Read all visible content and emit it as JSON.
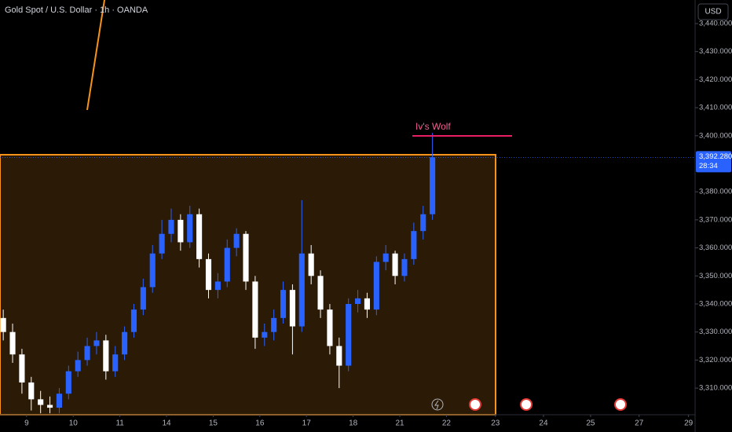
{
  "chart_data": {
    "type": "candlestick",
    "title": "Gold Spot / U.S. Dollar · 1h · OANDA",
    "currency": "USD",
    "up_color": "#2962ff",
    "down_color": "#ffffff",
    "annotation": "Iv's Wolf",
    "last_price": {
      "value": 3392.28,
      "label": "3,392.280"
    },
    "countdown": "28:34",
    "x": [
      -0.5,
      -0.3,
      -0.1,
      0.1,
      0.3,
      0.5,
      0.7,
      0.9,
      1.1,
      1.3,
      1.5,
      1.7,
      1.9,
      2.1,
      2.3,
      2.5,
      2.7,
      2.9,
      3.1,
      3.3,
      3.5,
      3.7,
      3.9,
      4.1,
      4.3,
      4.5,
      4.7,
      4.9,
      5.1,
      5.3,
      5.5,
      5.7,
      5.9,
      6.1,
      6.3,
      6.5,
      6.7,
      6.9,
      7.1,
      7.3,
      7.5,
      7.7,
      7.9,
      8.1,
      8.3,
      8.5,
      8.7
    ],
    "open": [
      3335,
      3330,
      3322,
      3312,
      3306,
      3304,
      3303,
      3308,
      3316,
      3320,
      3325,
      3327,
      3316,
      3322,
      3330,
      3338,
      3346,
      3358,
      3365,
      3370,
      3362,
      3372,
      3356,
      3345,
      3348,
      3360,
      3365,
      3348,
      3328,
      3330,
      3335,
      3345,
      3332,
      3358,
      3350,
      3338,
      3325,
      3318,
      3340,
      3342,
      3338,
      3355,
      3358,
      3350,
      3356,
      3366,
      3372
    ],
    "high": [
      3338,
      3333,
      3324,
      3314,
      3309,
      3307,
      3310,
      3318,
      3323,
      3328,
      3330,
      3329,
      3325,
      3332,
      3340,
      3349,
      3361,
      3370,
      3374,
      3372,
      3375,
      3374,
      3358,
      3351,
      3363,
      3367,
      3366,
      3350,
      3333,
      3338,
      3348,
      3347,
      3377,
      3361,
      3352,
      3340,
      3328,
      3342,
      3345,
      3344,
      3357,
      3361,
      3359,
      3358,
      3369,
      3375,
      3401
    ],
    "low": [
      3327,
      3319,
      3308,
      3302,
      3301,
      3301,
      3301,
      3306,
      3314,
      3318,
      3322,
      3313,
      3314,
      3320,
      3328,
      3336,
      3344,
      3356,
      3362,
      3359,
      3360,
      3353,
      3342,
      3342,
      3346,
      3357,
      3345,
      3324,
      3325,
      3327,
      3333,
      3322,
      3330,
      3347,
      3335,
      3322,
      3310,
      3316,
      3337,
      3335,
      3336,
      3352,
      3347,
      3348,
      3354,
      3363,
      3370
    ],
    "close": [
      3330,
      3322,
      3312,
      3306,
      3304,
      3303,
      3308,
      3316,
      3320,
      3325,
      3327,
      3316,
      3322,
      3330,
      3338,
      3346,
      3358,
      3365,
      3370,
      3362,
      3372,
      3356,
      3345,
      3348,
      3360,
      3365,
      3348,
      3328,
      3330,
      3335,
      3345,
      3332,
      3358,
      3350,
      3338,
      3325,
      3318,
      3340,
      3342,
      3338,
      3355,
      3358,
      3350,
      3356,
      3366,
      3372,
      3392.28
    ],
    "ylim": [
      3300.5,
      3448.4
    ],
    "yticks": [
      {
        "value": 3440,
        "label": "3,440.000"
      },
      {
        "value": 3430,
        "label": "3,430.000"
      },
      {
        "value": 3420,
        "label": "3,420.000"
      },
      {
        "value": 3410,
        "label": "3,410.000"
      },
      {
        "value": 3400,
        "label": "3,400.000"
      },
      {
        "value": 3380,
        "label": "3,380.000"
      },
      {
        "value": 3370,
        "label": "3,370.000"
      },
      {
        "value": 3360,
        "label": "3,360.000"
      },
      {
        "value": 3350,
        "label": "3,350.000"
      },
      {
        "value": 3340,
        "label": "3,340.000"
      },
      {
        "value": 3330,
        "label": "3,330.000"
      },
      {
        "value": 3320,
        "label": "3,320.000"
      },
      {
        "value": 3310,
        "label": "3,310.000"
      }
    ],
    "xlim": [
      -0.57,
      14.33
    ],
    "xticks": [
      {
        "value": 0,
        "label": "9"
      },
      {
        "value": 1,
        "label": "10"
      },
      {
        "value": 2,
        "label": "11"
      },
      {
        "value": 3,
        "label": "14"
      },
      {
        "value": 4,
        "label": "15"
      },
      {
        "value": 5,
        "label": "16"
      },
      {
        "value": 6,
        "label": "17"
      },
      {
        "value": 7,
        "label": "18"
      },
      {
        "value": 8,
        "label": "21"
      },
      {
        "value": 9,
        "label": "22"
      },
      {
        "value": 10.05,
        "label": "23"
      },
      {
        "value": 11.08,
        "label": "24"
      },
      {
        "value": 12.09,
        "label": "25"
      },
      {
        "value": 13.13,
        "label": "27"
      },
      {
        "value": 14.19,
        "label": "29"
      }
    ]
  }
}
